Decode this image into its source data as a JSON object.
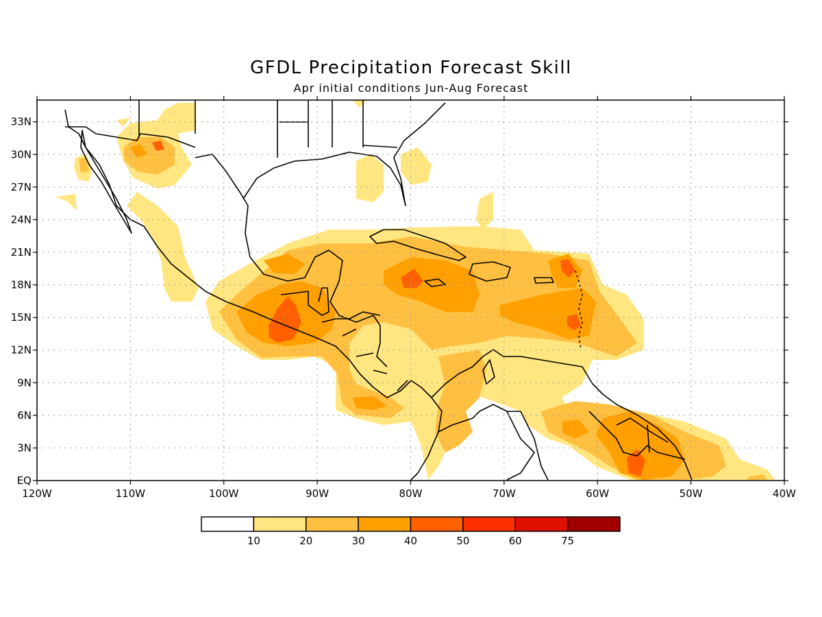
{
  "title": "GFDL Precipitation Forecast Skill",
  "subtitle": "Apr initial conditions  Jun-Aug Forecast",
  "map": {
    "lon_range": [
      -120,
      -40
    ],
    "lat_range": [
      0,
      35
    ],
    "lon_ticks": [
      {
        "value": -120,
        "label": "120W"
      },
      {
        "value": -110,
        "label": "110W"
      },
      {
        "value": -100,
        "label": "100W"
      },
      {
        "value": -90,
        "label": "90W"
      },
      {
        "value": -80,
        "label": "80W"
      },
      {
        "value": -70,
        "label": "70W"
      },
      {
        "value": -60,
        "label": "60W"
      },
      {
        "value": -50,
        "label": "50W"
      },
      {
        "value": -40,
        "label": "40W"
      }
    ],
    "lat_ticks": [
      {
        "value": 0,
        "label": "EQ"
      },
      {
        "value": 3,
        "label": "3N"
      },
      {
        "value": 6,
        "label": "6N"
      },
      {
        "value": 9,
        "label": "9N"
      },
      {
        "value": 12,
        "label": "12N"
      },
      {
        "value": 15,
        "label": "15N"
      },
      {
        "value": 18,
        "label": "18N"
      },
      {
        "value": 21,
        "label": "21N"
      },
      {
        "value": 24,
        "label": "24N"
      },
      {
        "value": 27,
        "label": "27N"
      },
      {
        "value": 30,
        "label": "30N"
      },
      {
        "value": 33,
        "label": "33N"
      }
    ],
    "grid": true
  },
  "legend": {
    "colors": [
      "#ffffff",
      "#ffe680",
      "#ffbf40",
      "#ffa000",
      "#ff6000",
      "#ff3000",
      "#e01000",
      "#a00000"
    ],
    "labels": [
      "10",
      "20",
      "30",
      "40",
      "50",
      "60",
      "75"
    ]
  }
}
